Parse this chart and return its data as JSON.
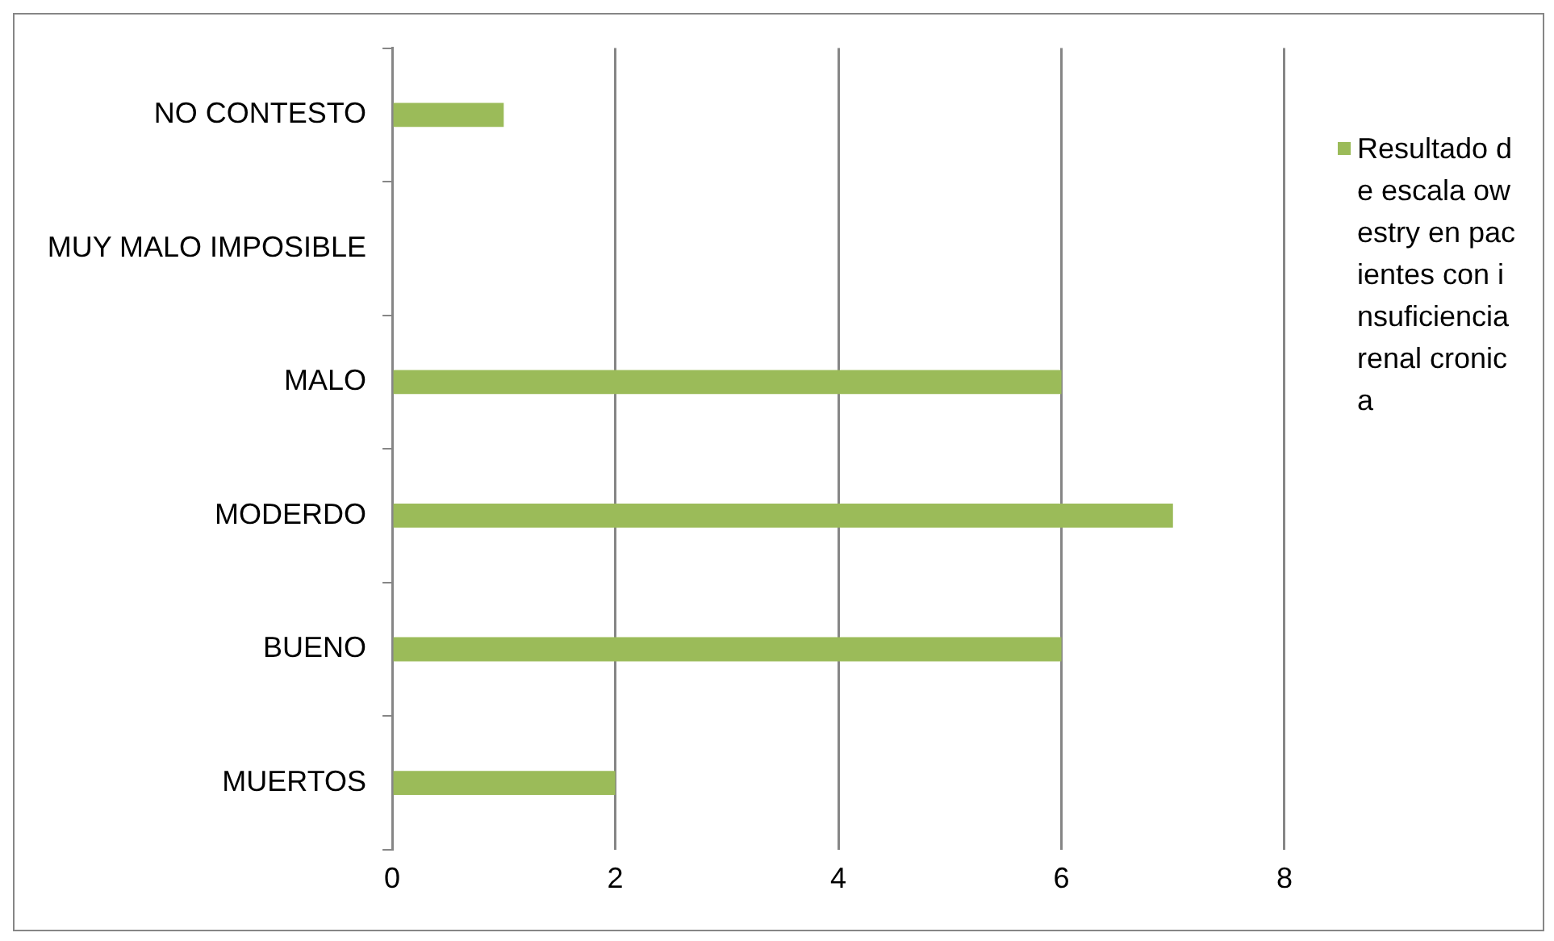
{
  "chart_data": {
    "type": "bar",
    "orientation": "horizontal",
    "categories": [
      "NO CONTESTO",
      "MUY MALO IMPOSIBLE",
      "MALO",
      "MODERDO",
      "BUENO",
      "MUERTOS"
    ],
    "series": [
      {
        "name": "Resultado de escala owestry en pacientes con insuficiencia renal cronica",
        "color": "#9bbb59",
        "values": [
          1,
          0,
          6,
          7,
          6,
          2
        ]
      }
    ],
    "xlim": [
      0,
      8
    ],
    "xticks": [
      0,
      2,
      4,
      6,
      8
    ],
    "grid": "x",
    "legend": "right"
  }
}
